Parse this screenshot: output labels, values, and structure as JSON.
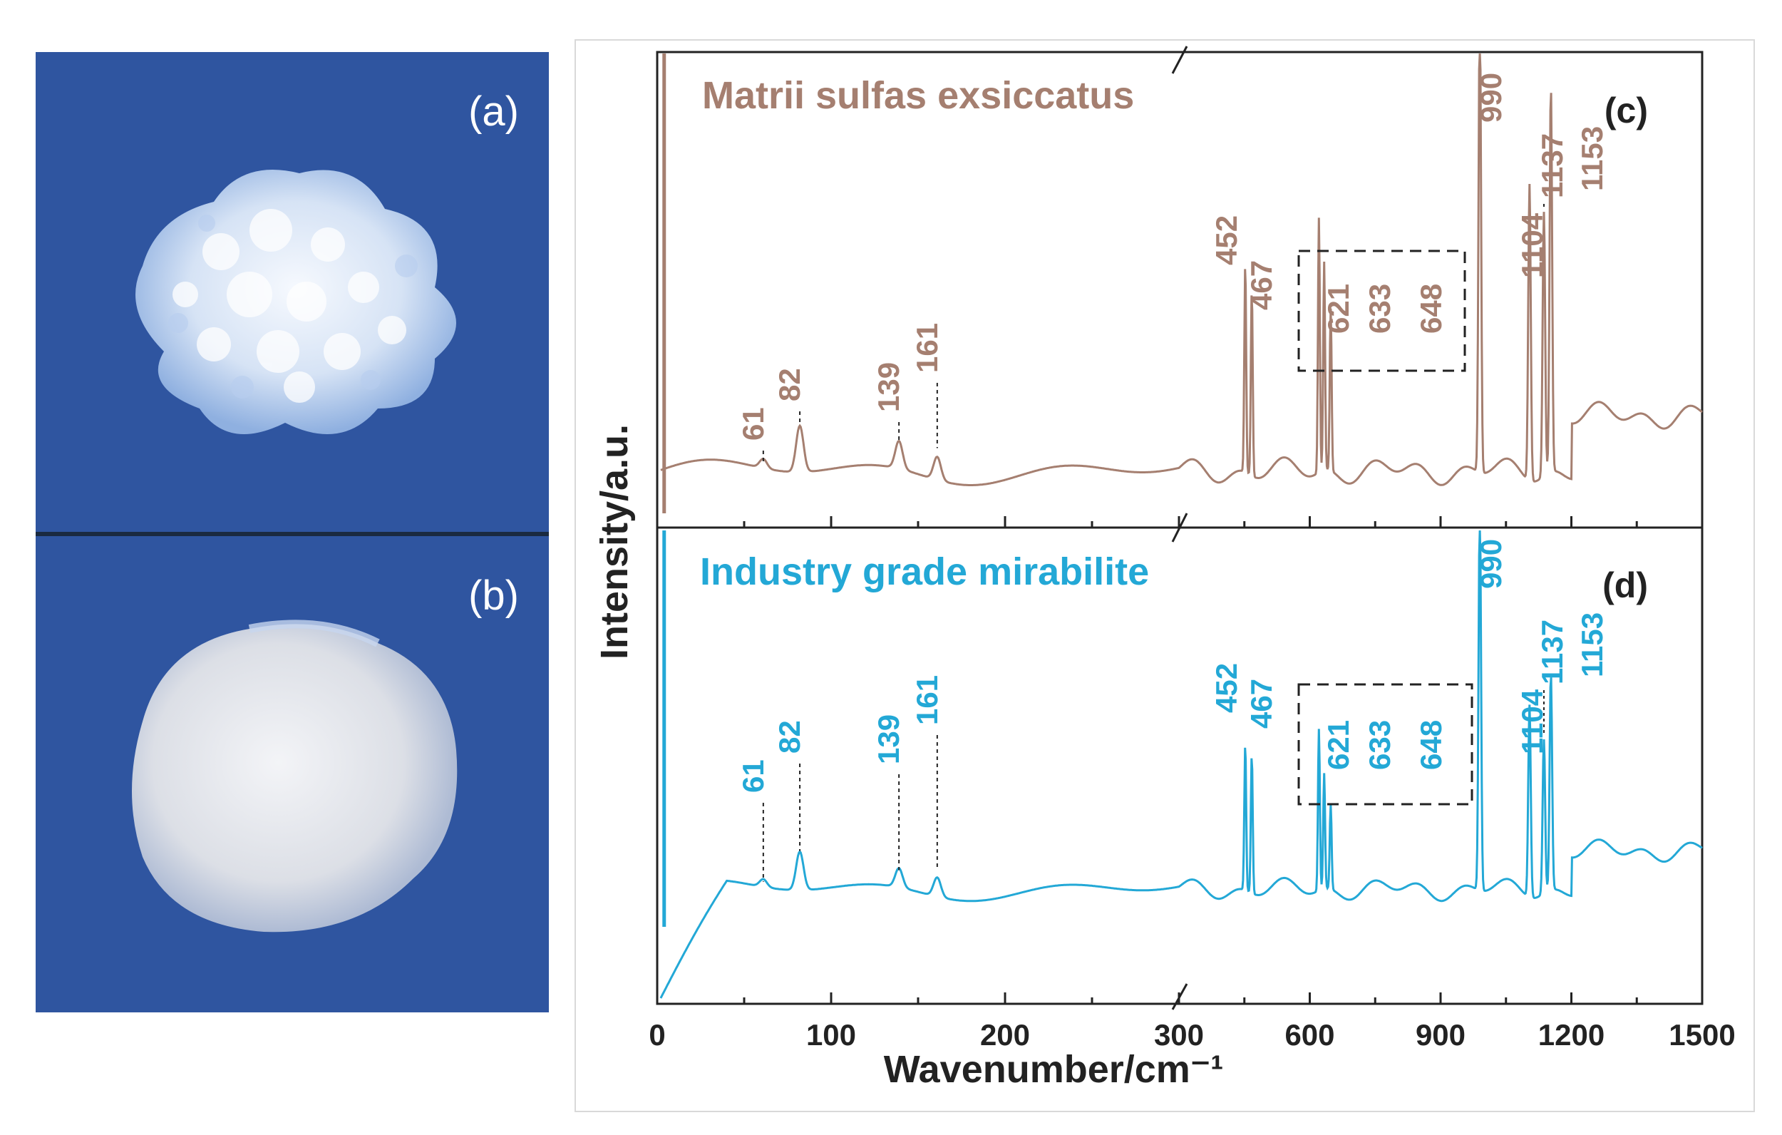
{
  "photos": {
    "a": {
      "label": "(a)"
    },
    "b": {
      "label": "(b)"
    }
  },
  "colors": {
    "panel_c": "#a57f70",
    "panel_d": "#23a8d6",
    "photo_bg": "#2f55a0",
    "crystal": "#dde8f6"
  },
  "chart_data": {
    "type": "line",
    "xlabel": "Wavenumber/cm⁻¹",
    "ylabel": "Intensity/a.u.",
    "x_axis": "broken axis: 0–300 then 300–1500",
    "x_ticks": [
      "0",
      "100",
      "200",
      "300",
      "600",
      "900",
      "1200",
      "1500"
    ],
    "panels": [
      {
        "panel": "(c)",
        "name": "Matrii sulfas exsiccatus",
        "color": "#a57f70",
        "peaks": [
          {
            "x": 61,
            "label": "61",
            "height": 0.02
          },
          {
            "x": 82,
            "label": "82",
            "height": 0.1
          },
          {
            "x": 139,
            "label": "139",
            "height": 0.06
          },
          {
            "x": 161,
            "label": "161",
            "height": 0.05
          },
          {
            "x": 452,
            "label": "452",
            "height": 0.45
          },
          {
            "x": 467,
            "label": "467",
            "height": 0.4
          },
          {
            "x": 621,
            "label": "621",
            "height": 0.55
          },
          {
            "x": 633,
            "label": "633",
            "height": 0.45
          },
          {
            "x": 648,
            "label": "648",
            "height": 0.35
          },
          {
            "x": 990,
            "label": "990",
            "height": 1.0
          },
          {
            "x": 1104,
            "label": "1104",
            "height": 0.64
          },
          {
            "x": 1137,
            "label": "1137",
            "height": 0.57
          },
          {
            "x": 1153,
            "label": "1153",
            "height": 0.83
          }
        ]
      },
      {
        "panel": "(d)",
        "name": "Industry grade mirabilite",
        "color": "#23a8d6",
        "peaks": [
          {
            "x": 61,
            "label": "61",
            "height": 0.02
          },
          {
            "x": 82,
            "label": "82",
            "height": 0.1
          },
          {
            "x": 139,
            "label": "139",
            "height": 0.05
          },
          {
            "x": 161,
            "label": "161",
            "height": 0.05
          },
          {
            "x": 452,
            "label": "452",
            "height": 0.38
          },
          {
            "x": 467,
            "label": "467",
            "height": 0.36
          },
          {
            "x": 621,
            "label": "621",
            "height": 0.42
          },
          {
            "x": 633,
            "label": "633",
            "height": 0.3
          },
          {
            "x": 648,
            "label": "648",
            "height": 0.22
          },
          {
            "x": 990,
            "label": "990",
            "height": 1.0
          },
          {
            "x": 1104,
            "label": "1104",
            "height": 0.5
          },
          {
            "x": 1137,
            "label": "1137",
            "height": 0.4
          },
          {
            "x": 1153,
            "label": "1153",
            "height": 0.56
          }
        ]
      }
    ]
  }
}
